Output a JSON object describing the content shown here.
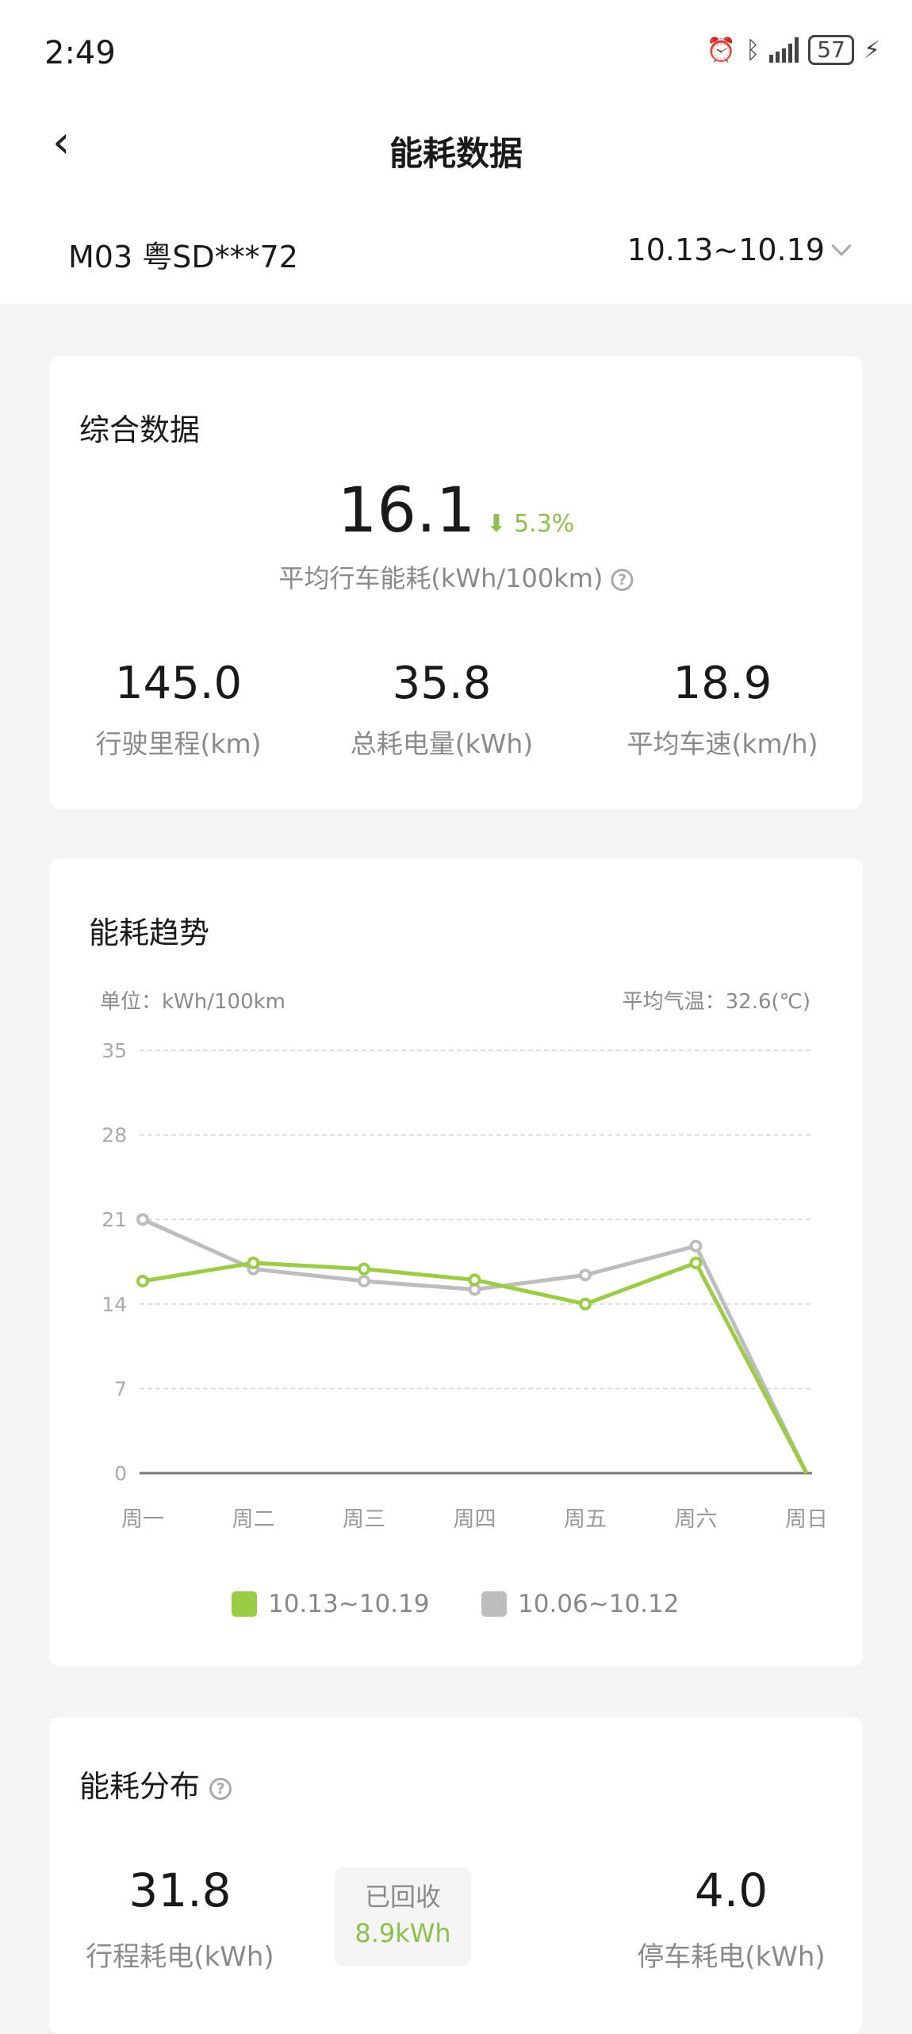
{
  "status_bar": {
    "time": "2:49",
    "battery": "57",
    "icons": [
      "alarm-icon",
      "bluetooth-icon",
      "signal-icon",
      "battery-icon",
      "charging-icon"
    ]
  },
  "header": {
    "title": "能耗数据",
    "back_icon": "chevron-left-icon"
  },
  "vehicle": {
    "name": "M03 粤SD***72",
    "date_range": "10.13~10.19"
  },
  "summary": {
    "title": "综合数据",
    "avg_value": "16.1",
    "change": "5.3%",
    "change_direction": "down",
    "avg_label": "平均行车能耗(kWh/100km)",
    "stats": [
      {
        "value": "145.0",
        "label": "行驶里程(km)"
      },
      {
        "value": "35.8",
        "label": "总耗电量(kWh)"
      },
      {
        "value": "18.9",
        "label": "平均车速(km/h)"
      }
    ]
  },
  "trend": {
    "title": "能耗趋势",
    "unit": "单位：kWh/100km",
    "temp": "平均气温：32.6(℃)"
  },
  "chart_data": {
    "type": "line",
    "categories": [
      "周一",
      "周二",
      "周三",
      "周四",
      "周五",
      "周六",
      "周日"
    ],
    "ylim": [
      0,
      35
    ],
    "yticks": [
      "0",
      "7",
      "14",
      "21",
      "28",
      "35"
    ],
    "grid": true,
    "legend": "bottom",
    "series": [
      {
        "name": "10.13~10.19",
        "color": "#9bcc45",
        "values": [
          15.9,
          17.4,
          16.9,
          16.0,
          14.0,
          17.4,
          0
        ]
      },
      {
        "name": "10.06~10.12",
        "color": "#bdbdbd",
        "values": [
          21.0,
          16.9,
          15.9,
          15.2,
          16.4,
          18.8,
          0
        ]
      }
    ]
  },
  "distribution": {
    "title": "能耗分布",
    "driving": {
      "value": "31.8",
      "label": "行程耗电(kWh)"
    },
    "recovered": {
      "label": "已回收",
      "value": "8.9kWh"
    },
    "parking": {
      "value": "4.0",
      "label": "停车耗电(kWh)"
    }
  },
  "colors": {
    "accent": "#8cc04b",
    "background": "#f4f4f4"
  }
}
